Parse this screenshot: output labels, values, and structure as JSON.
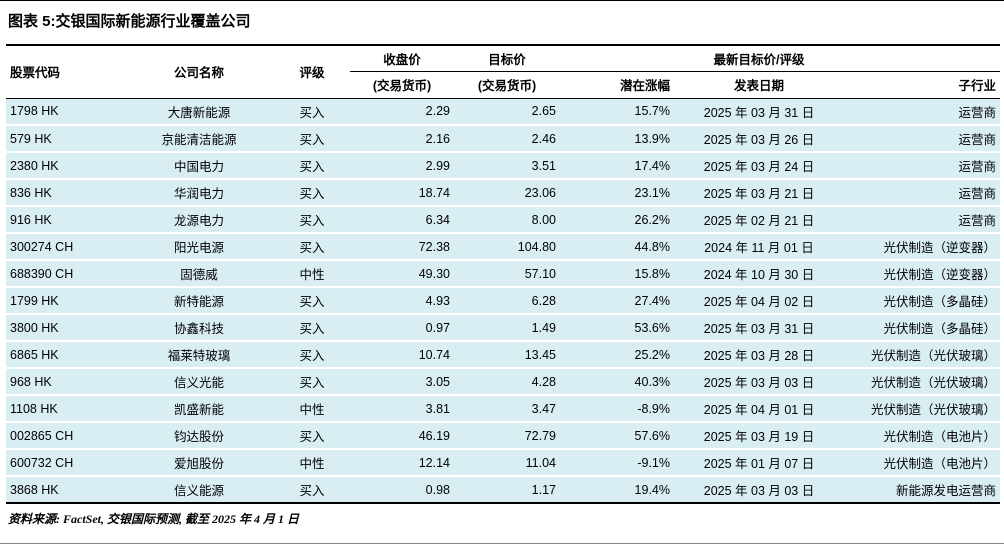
{
  "title": "图表 5:交银国际新能源行业覆盖公司",
  "table": {
    "headers": {
      "code": "股票代码",
      "name": "公司名称",
      "rating": "评级",
      "close_l1": "收盘价",
      "close_l2": "(交易货币)",
      "target_l1": "目标价",
      "target_l2": "(交易货币)",
      "upside": "潜在涨幅",
      "date_l1": "最新目标价/评级",
      "date_l2": "发表日期",
      "industry": "子行业"
    },
    "rows": [
      {
        "code": "1798 HK",
        "name": "大唐新能源",
        "rating": "买入",
        "close": "2.29",
        "target": "2.65",
        "upside": "15.7%",
        "date": "2025 年 03 月 31 日",
        "industry": "运营商"
      },
      {
        "code": "579 HK",
        "name": "京能清洁能源",
        "rating": "买入",
        "close": "2.16",
        "target": "2.46",
        "upside": "13.9%",
        "date": "2025 年 03 月 26 日",
        "industry": "运营商"
      },
      {
        "code": "2380 HK",
        "name": "中国电力",
        "rating": "买入",
        "close": "2.99",
        "target": "3.51",
        "upside": "17.4%",
        "date": "2025 年 03 月 24 日",
        "industry": "运营商"
      },
      {
        "code": "836 HK",
        "name": "华润电力",
        "rating": "买入",
        "close": "18.74",
        "target": "23.06",
        "upside": "23.1%",
        "date": "2025 年 03 月 21 日",
        "industry": "运营商"
      },
      {
        "code": "916 HK",
        "name": "龙源电力",
        "rating": "买入",
        "close": "6.34",
        "target": "8.00",
        "upside": "26.2%",
        "date": "2025 年 02 月 21 日",
        "industry": "运营商"
      },
      {
        "code": "300274 CH",
        "name": "阳光电源",
        "rating": "买入",
        "close": "72.38",
        "target": "104.80",
        "upside": "44.8%",
        "date": "2024 年 11 月 01 日",
        "industry": "光伏制造（逆变器）"
      },
      {
        "code": "688390 CH",
        "name": "固德威",
        "rating": "中性",
        "close": "49.30",
        "target": "57.10",
        "upside": "15.8%",
        "date": "2024 年 10 月 30 日",
        "industry": "光伏制造（逆变器）"
      },
      {
        "code": "1799 HK",
        "name": "新特能源",
        "rating": "买入",
        "close": "4.93",
        "target": "6.28",
        "upside": "27.4%",
        "date": "2025 年 04 月 02 日",
        "industry": "光伏制造（多晶硅）"
      },
      {
        "code": "3800 HK",
        "name": "协鑫科技",
        "rating": "买入",
        "close": "0.97",
        "target": "1.49",
        "upside": "53.6%",
        "date": "2025 年 03 月 31 日",
        "industry": "光伏制造（多晶硅）"
      },
      {
        "code": "6865 HK",
        "name": "福莱特玻璃",
        "rating": "买入",
        "close": "10.74",
        "target": "13.45",
        "upside": "25.2%",
        "date": "2025 年 03 月 28 日",
        "industry": "光伏制造（光伏玻璃）"
      },
      {
        "code": "968 HK",
        "name": "信义光能",
        "rating": "买入",
        "close": "3.05",
        "target": "4.28",
        "upside": "40.3%",
        "date": "2025 年 03 月 03 日",
        "industry": "光伏制造（光伏玻璃）"
      },
      {
        "code": "1108 HK",
        "name": "凯盛新能",
        "rating": "中性",
        "close": "3.81",
        "target": "3.47",
        "upside": "-8.9%",
        "date": "2025 年 04 月 01 日",
        "industry": "光伏制造（光伏玻璃）"
      },
      {
        "code": "002865 CH",
        "name": "钧达股份",
        "rating": "买入",
        "close": "46.19",
        "target": "72.79",
        "upside": "57.6%",
        "date": "2025 年 03 月 19 日",
        "industry": "光伏制造（电池片）"
      },
      {
        "code": "600732 CH",
        "name": "爱旭股份",
        "rating": "中性",
        "close": "12.14",
        "target": "11.04",
        "upside": "-9.1%",
        "date": "2025 年 01 月 07 日",
        "industry": "光伏制造（电池片）"
      },
      {
        "code": "3868 HK",
        "name": "信义能源",
        "rating": "买入",
        "close": "0.98",
        "target": "1.17",
        "upside": "19.4%",
        "date": "2025 年 03 月 03 日",
        "industry": "新能源发电运营商"
      }
    ]
  },
  "footer": "资料来源: FactSet, 交银国际预测, 截至 2025 年 4 月 1 日",
  "colors": {
    "row_fill": "#d9eef3",
    "line": "#000000"
  }
}
